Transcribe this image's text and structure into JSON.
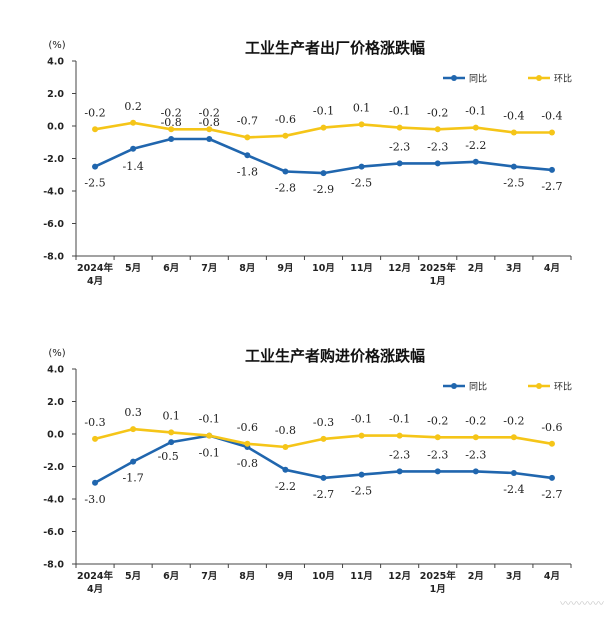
{
  "charts": [
    {
      "chart_data": {
        "type": "line",
        "title": "工业生产者出厂价格涨跌幅",
        "y_unit": "(%)",
        "ylim": [
          -8.0,
          4.0
        ],
        "y_ticks": [
          "4.0",
          "2.0",
          "0.0",
          "-2.0",
          "-4.0",
          "-6.0",
          "-8.0"
        ],
        "categories": [
          [
            "2024年",
            "4月"
          ],
          [
            "5月"
          ],
          [
            "6月"
          ],
          [
            "7月"
          ],
          [
            "8月"
          ],
          [
            "9月"
          ],
          [
            "10月"
          ],
          [
            "11月"
          ],
          [
            "12月"
          ],
          [
            "2025年",
            "1月"
          ],
          [
            "2月"
          ],
          [
            "3月"
          ],
          [
            "4月"
          ]
        ],
        "grid": false,
        "legend_position": "top-right",
        "series": [
          {
            "name": "同比",
            "color": "#2066ae",
            "values": [
              -2.5,
              -1.4,
              -0.8,
              -0.8,
              -1.8,
              -2.8,
              -2.9,
              -2.5,
              -2.3,
              -2.3,
              -2.2,
              -2.5,
              -2.7
            ],
            "labels": [
              "-2.5",
              "-1.4",
              "-0.8",
              "-0.8",
              "-1.8",
              "-2.8",
              "-2.9",
              "-2.5",
              "-2.3",
              "-2.3",
              "-2.2",
              "-2.5",
              "-2.7"
            ]
          },
          {
            "name": "环比",
            "color": "#f5c518",
            "values": [
              -0.2,
              0.2,
              -0.2,
              -0.2,
              -0.7,
              -0.6,
              -0.1,
              0.1,
              -0.1,
              -0.2,
              -0.1,
              -0.4,
              -0.4
            ],
            "labels": [
              "-0.2",
              "0.2",
              "-0.2",
              "-0.2",
              "-0.7",
              "-0.6",
              "-0.1",
              "0.1",
              "-0.1",
              "-0.2",
              "-0.1",
              "-0.4",
              "-0.4"
            ]
          }
        ]
      }
    },
    {
      "chart_data": {
        "type": "line",
        "title": "工业生产者购进价格涨跌幅",
        "y_unit": "(%)",
        "ylim": [
          -8.0,
          4.0
        ],
        "y_ticks": [
          "4.0",
          "2.0",
          "0.0",
          "-2.0",
          "-4.0",
          "-6.0",
          "-8.0"
        ],
        "categories": [
          [
            "2024年",
            "4月"
          ],
          [
            "5月"
          ],
          [
            "6月"
          ],
          [
            "7月"
          ],
          [
            "8月"
          ],
          [
            "9月"
          ],
          [
            "10月"
          ],
          [
            "11月"
          ],
          [
            "12月"
          ],
          [
            "2025年",
            "1月"
          ],
          [
            "2月"
          ],
          [
            "3月"
          ],
          [
            "4月"
          ]
        ],
        "grid": false,
        "legend_position": "top-right",
        "series": [
          {
            "name": "同比",
            "color": "#2066ae",
            "values": [
              -3.0,
              -1.7,
              -0.5,
              -0.1,
              -0.8,
              -2.2,
              -2.7,
              -2.5,
              -2.3,
              -2.3,
              -2.3,
              -2.4,
              -2.7
            ],
            "labels": [
              "-3.0",
              "-1.7",
              "-0.5",
              "-0.1",
              "-0.8",
              "-2.2",
              "-2.7",
              "-2.5",
              "-2.3",
              "-2.3",
              "-2.3",
              "-2.4",
              "-2.7"
            ]
          },
          {
            "name": "环比",
            "color": "#f5c518",
            "values": [
              -0.3,
              0.3,
              0.1,
              -0.1,
              -0.6,
              -0.8,
              -0.3,
              -0.1,
              -0.1,
              -0.2,
              -0.2,
              -0.2,
              -0.6
            ],
            "labels": [
              "-0.3",
              "0.3",
              "0.1",
              "-0.1",
              "-0.6",
              "-0.8",
              "-0.3",
              "-0.1",
              "-0.1",
              "-0.2",
              "-0.2",
              "-0.2",
              "-0.6"
            ]
          }
        ]
      }
    }
  ]
}
